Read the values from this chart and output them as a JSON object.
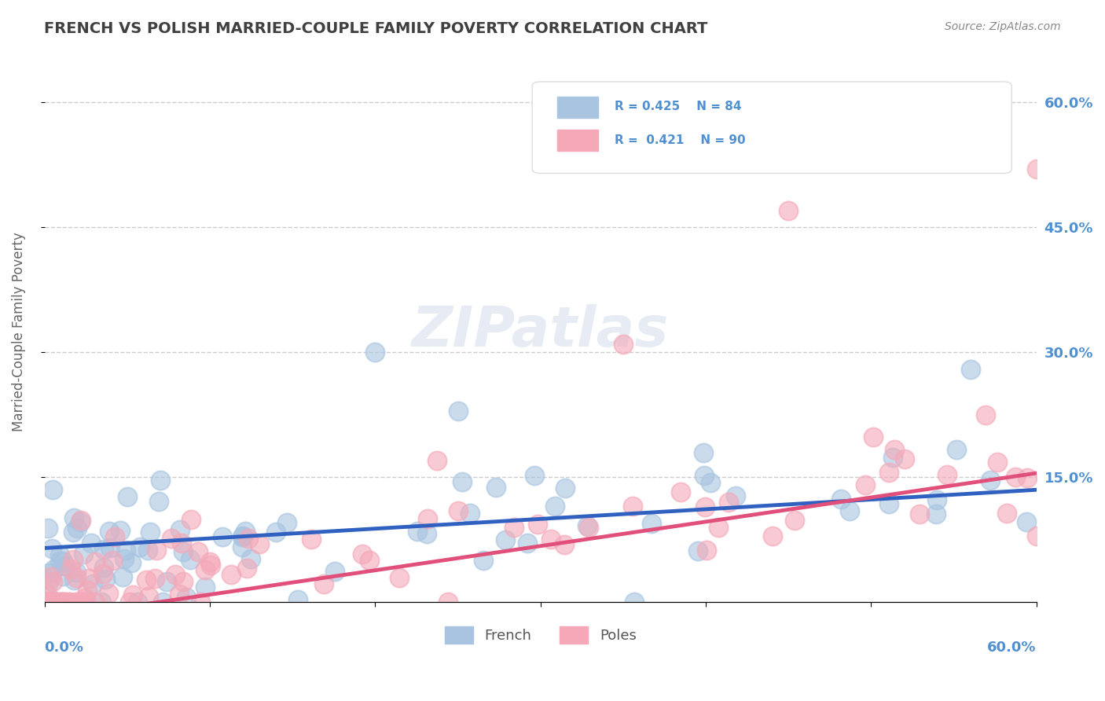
{
  "title": "FRENCH VS POLISH MARRIED-COUPLE FAMILY POVERTY CORRELATION CHART",
  "source": "Source: ZipAtlas.com",
  "ylabel": "Married-Couple Family Poverty",
  "xlim": [
    0.0,
    0.6
  ],
  "ylim": [
    0.0,
    0.65
  ],
  "french_R": 0.425,
  "french_N": 84,
  "poles_R": 0.421,
  "poles_N": 90,
  "french_color": "#a8c4e0",
  "poles_color": "#f4a8b8",
  "french_line_color": "#3060c0",
  "poles_line_color": "#e0507a",
  "legend_label_french": "French",
  "legend_label_poles": "Poles",
  "background_color": "#ffffff",
  "grid_color": "#cccccc",
  "title_color": "#404040",
  "axis_label_color": "#5090d0",
  "watermark": "ZIPatlas",
  "ytick_vals": [
    0.15,
    0.3,
    0.45,
    0.6
  ],
  "ytick_labels": [
    "15.0%",
    "30.0%",
    "45.0%",
    "60.0%"
  ],
  "french_trend": [
    0.065,
    0.135
  ],
  "poles_trend": [
    -0.02,
    0.155
  ]
}
